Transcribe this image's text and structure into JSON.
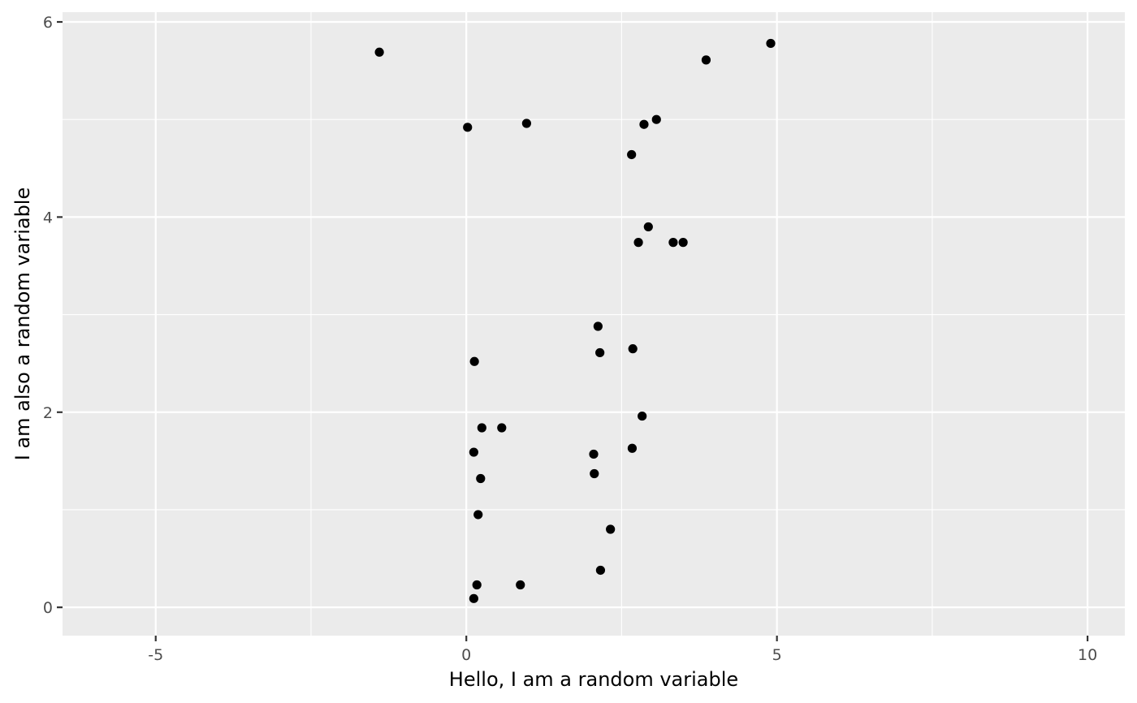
{
  "chart_data": {
    "type": "scatter",
    "xlabel": "Hello, I am a random variable",
    "ylabel": "I am also a random variable",
    "xlim": [
      -6.5,
      10.6
    ],
    "ylim": [
      -0.29,
      6.1
    ],
    "x_ticks": [
      -5,
      0,
      5,
      10
    ],
    "x_tick_labels": [
      "-5",
      "0",
      "5",
      "10"
    ],
    "y_ticks": [
      0,
      2,
      4,
      6
    ],
    "y_tick_labels": [
      "0",
      "2",
      "4",
      "6"
    ],
    "grid": true,
    "point_color": "#000000",
    "panel_color": "#ebebeb",
    "points": [
      {
        "x": -1.4,
        "y": 5.69
      },
      {
        "x": 3.86,
        "y": 5.61
      },
      {
        "x": 4.9,
        "y": 5.78
      },
      {
        "x": 0.02,
        "y": 4.92
      },
      {
        "x": 0.97,
        "y": 4.96
      },
      {
        "x": 2.86,
        "y": 4.95
      },
      {
        "x": 3.06,
        "y": 5.0
      },
      {
        "x": 2.66,
        "y": 4.64
      },
      {
        "x": 2.93,
        "y": 3.9
      },
      {
        "x": 2.77,
        "y": 3.74
      },
      {
        "x": 3.33,
        "y": 3.74
      },
      {
        "x": 3.49,
        "y": 3.74
      },
      {
        "x": 2.12,
        "y": 2.88
      },
      {
        "x": 2.15,
        "y": 2.61
      },
      {
        "x": 2.68,
        "y": 2.65
      },
      {
        "x": 0.13,
        "y": 2.52
      },
      {
        "x": 2.83,
        "y": 1.96
      },
      {
        "x": 0.25,
        "y": 1.84
      },
      {
        "x": 0.57,
        "y": 1.84
      },
      {
        "x": 2.67,
        "y": 1.63
      },
      {
        "x": 0.12,
        "y": 1.59
      },
      {
        "x": 2.05,
        "y": 1.57
      },
      {
        "x": 2.06,
        "y": 1.37
      },
      {
        "x": 0.23,
        "y": 1.32
      },
      {
        "x": 0.19,
        "y": 0.95
      },
      {
        "x": 2.32,
        "y": 0.8
      },
      {
        "x": 2.16,
        "y": 0.38
      },
      {
        "x": 0.17,
        "y": 0.23
      },
      {
        "x": 0.87,
        "y": 0.23
      },
      {
        "x": 0.12,
        "y": 0.09
      }
    ]
  }
}
